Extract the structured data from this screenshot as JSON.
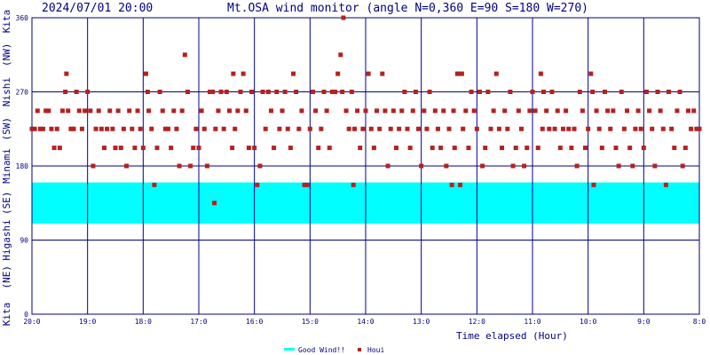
{
  "header": {
    "timestamp": "2024/07/01 20:00",
    "title": "Mt.OSA wind monitor (angle N=0,360 E=90 S=180 W=270)"
  },
  "colors": {
    "axis": "#000080",
    "grid": "#00008b",
    "band": "#00ffff",
    "points": "#b22222"
  },
  "chart_data": {
    "type": "scatter",
    "title": "Mt.OSA wind monitor (angle N=0,360 E=90 S=180 W=270)",
    "xlabel": "Time elapsed (Hour)",
    "ylabel": "",
    "x_direction": "reversed (20:0 at left, 8:0 at right)",
    "xlim": [
      20,
      8
    ],
    "ylim": [
      0,
      360
    ],
    "x_ticks": [
      "20:0",
      "19:0",
      "18:0",
      "17:0",
      "16:0",
      "15:0",
      "14:0",
      "13:0",
      "12:0",
      "11:0",
      "10:0",
      "9:0",
      "8:0"
    ],
    "y_ticks": [
      "0",
      "90",
      "180",
      "270",
      "360"
    ],
    "y_direction_labels": [
      {
        "text": "Kita",
        "angle": 0
      },
      {
        "text": "(NE)",
        "angle": 45
      },
      {
        "text": "Higashi",
        "angle": 90
      },
      {
        "text": "(SE)",
        "angle": 135
      },
      {
        "text": "Minami",
        "angle": 180
      },
      {
        "text": "(SW)",
        "angle": 225
      },
      {
        "text": "Nishi",
        "angle": 270
      },
      {
        "text": "(NW)",
        "angle": 315
      },
      {
        "text": "Kita",
        "angle": 360
      }
    ],
    "good_wind_band": {
      "from": 110,
      "to": 160
    },
    "legend": [
      {
        "label": "Good Wind!!",
        "symbol": "band"
      },
      {
        "label": "Houi",
        "symbol": "point"
      }
    ],
    "legend_position": "bottom",
    "grid": true,
    "series": [
      {
        "name": "Houi",
        "points": [
          [
            20.0,
            225
          ],
          [
            19.95,
            225
          ],
          [
            19.9,
            247
          ],
          [
            19.85,
            225
          ],
          [
            19.8,
            225
          ],
          [
            19.75,
            247
          ],
          [
            19.7,
            247
          ],
          [
            19.65,
            225
          ],
          [
            19.6,
            202
          ],
          [
            19.55,
            225
          ],
          [
            19.5,
            202
          ],
          [
            19.45,
            247
          ],
          [
            19.4,
            270
          ],
          [
            19.38,
            292
          ],
          [
            19.35,
            247
          ],
          [
            19.3,
            225
          ],
          [
            19.25,
            225
          ],
          [
            19.2,
            270
          ],
          [
            19.15,
            247
          ],
          [
            19.1,
            225
          ],
          [
            19.05,
            247
          ],
          [
            19.0,
            270
          ],
          [
            18.95,
            247
          ],
          [
            18.9,
            180
          ],
          [
            18.85,
            225
          ],
          [
            18.8,
            247
          ],
          [
            18.75,
            225
          ],
          [
            18.7,
            202
          ],
          [
            18.65,
            225
          ],
          [
            18.6,
            247
          ],
          [
            18.55,
            225
          ],
          [
            18.5,
            202
          ],
          [
            18.45,
            247
          ],
          [
            18.4,
            202
          ],
          [
            18.35,
            225
          ],
          [
            18.3,
            180
          ],
          [
            18.25,
            247
          ],
          [
            18.2,
            225
          ],
          [
            18.15,
            202
          ],
          [
            18.1,
            247
          ],
          [
            18.05,
            225
          ],
          [
            18.0,
            202
          ],
          [
            17.95,
            292
          ],
          [
            17.92,
            270
          ],
          [
            17.9,
            247
          ],
          [
            17.85,
            225
          ],
          [
            17.8,
            157
          ],
          [
            17.75,
            202
          ],
          [
            17.7,
            270
          ],
          [
            17.65,
            247
          ],
          [
            17.6,
            225
          ],
          [
            17.55,
            225
          ],
          [
            17.5,
            202
          ],
          [
            17.45,
            247
          ],
          [
            17.4,
            225
          ],
          [
            17.35,
            180
          ],
          [
            17.3,
            247
          ],
          [
            17.25,
            315
          ],
          [
            17.2,
            270
          ],
          [
            17.15,
            180
          ],
          [
            17.1,
            202
          ],
          [
            17.05,
            225
          ],
          [
            17.0,
            202
          ],
          [
            16.95,
            247
          ],
          [
            16.9,
            225
          ],
          [
            16.85,
            180
          ],
          [
            16.8,
            270
          ],
          [
            16.75,
            270
          ],
          [
            16.72,
            135
          ],
          [
            16.7,
            225
          ],
          [
            16.65,
            247
          ],
          [
            16.6,
            270
          ],
          [
            16.55,
            225
          ],
          [
            16.5,
            270
          ],
          [
            16.45,
            247
          ],
          [
            16.4,
            202
          ],
          [
            16.38,
            292
          ],
          [
            16.35,
            225
          ],
          [
            16.3,
            247
          ],
          [
            16.25,
            270
          ],
          [
            16.2,
            292
          ],
          [
            16.15,
            247
          ],
          [
            16.1,
            202
          ],
          [
            16.05,
            270
          ],
          [
            16.0,
            202
          ],
          [
            15.95,
            157
          ],
          [
            15.9,
            180
          ],
          [
            15.85,
            270
          ],
          [
            15.8,
            225
          ],
          [
            15.75,
            270
          ],
          [
            15.7,
            247
          ],
          [
            15.65,
            202
          ],
          [
            15.6,
            270
          ],
          [
            15.55,
            225
          ],
          [
            15.5,
            247
          ],
          [
            15.45,
            270
          ],
          [
            15.4,
            225
          ],
          [
            15.35,
            202
          ],
          [
            15.3,
            292
          ],
          [
            15.25,
            270
          ],
          [
            15.2,
            225
          ],
          [
            15.15,
            247
          ],
          [
            15.1,
            157
          ],
          [
            15.05,
            157
          ],
          [
            15.0,
            225
          ],
          [
            14.95,
            270
          ],
          [
            14.9,
            247
          ],
          [
            14.85,
            202
          ],
          [
            14.8,
            225
          ],
          [
            14.75,
            270
          ],
          [
            14.7,
            247
          ],
          [
            14.65,
            202
          ],
          [
            14.6,
            270
          ],
          [
            14.55,
            270
          ],
          [
            14.5,
            292
          ],
          [
            14.45,
            315
          ],
          [
            14.42,
            270
          ],
          [
            14.4,
            360
          ],
          [
            14.35,
            247
          ],
          [
            14.3,
            225
          ],
          [
            14.25,
            270
          ],
          [
            14.22,
            157
          ],
          [
            14.2,
            225
          ],
          [
            14.15,
            247
          ],
          [
            14.1,
            202
          ],
          [
            14.05,
            225
          ],
          [
            14.0,
            247
          ],
          [
            13.95,
            292
          ],
          [
            13.9,
            225
          ],
          [
            13.85,
            202
          ],
          [
            13.8,
            247
          ],
          [
            13.75,
            225
          ],
          [
            13.7,
            292
          ],
          [
            13.65,
            247
          ],
          [
            13.6,
            180
          ],
          [
            13.55,
            225
          ],
          [
            13.5,
            247
          ],
          [
            13.45,
            202
          ],
          [
            13.4,
            225
          ],
          [
            13.35,
            247
          ],
          [
            13.3,
            270
          ],
          [
            13.25,
            225
          ],
          [
            13.2,
            202
          ],
          [
            13.15,
            247
          ],
          [
            13.1,
            270
          ],
          [
            13.05,
            225
          ],
          [
            13.0,
            180
          ],
          [
            12.95,
            247
          ],
          [
            12.9,
            225
          ],
          [
            12.85,
            270
          ],
          [
            12.8,
            202
          ],
          [
            12.75,
            247
          ],
          [
            12.7,
            225
          ],
          [
            12.65,
            202
          ],
          [
            12.6,
            247
          ],
          [
            12.55,
            180
          ],
          [
            12.5,
            225
          ],
          [
            12.45,
            157
          ],
          [
            12.42,
            247
          ],
          [
            12.4,
            202
          ],
          [
            12.35,
            292
          ],
          [
            12.32,
            292
          ],
          [
            12.3,
            157
          ],
          [
            12.27,
            292
          ],
          [
            12.25,
            225
          ],
          [
            12.2,
            247
          ],
          [
            12.15,
            202
          ],
          [
            12.1,
            270
          ],
          [
            12.05,
            247
          ],
          [
            12.0,
            225
          ],
          [
            11.95,
            270
          ],
          [
            11.9,
            180
          ],
          [
            11.85,
            202
          ],
          [
            11.8,
            270
          ],
          [
            11.75,
            225
          ],
          [
            11.7,
            247
          ],
          [
            11.65,
            292
          ],
          [
            11.6,
            225
          ],
          [
            11.55,
            202
          ],
          [
            11.5,
            247
          ],
          [
            11.45,
            225
          ],
          [
            11.4,
            270
          ],
          [
            11.35,
            180
          ],
          [
            11.3,
            202
          ],
          [
            11.25,
            247
          ],
          [
            11.2,
            225
          ],
          [
            11.15,
            180
          ],
          [
            11.1,
            202
          ],
          [
            11.05,
            247
          ],
          [
            11.0,
            270
          ],
          [
            10.95,
            247
          ],
          [
            10.9,
            202
          ],
          [
            10.85,
            292
          ],
          [
            10.82,
            225
          ],
          [
            10.8,
            270
          ],
          [
            10.75,
            247
          ],
          [
            10.7,
            225
          ],
          [
            10.65,
            270
          ],
          [
            10.6,
            225
          ],
          [
            10.55,
            247
          ],
          [
            10.5,
            202
          ],
          [
            10.45,
            225
          ],
          [
            10.4,
            247
          ],
          [
            10.35,
            225
          ],
          [
            10.3,
            202
          ],
          [
            10.25,
            225
          ],
          [
            10.2,
            180
          ],
          [
            10.15,
            270
          ],
          [
            10.1,
            247
          ],
          [
            10.05,
            202
          ],
          [
            10.0,
            225
          ],
          [
            9.95,
            292
          ],
          [
            9.92,
            270
          ],
          [
            9.9,
            157
          ],
          [
            9.85,
            247
          ],
          [
            9.8,
            225
          ],
          [
            9.75,
            202
          ],
          [
            9.7,
            270
          ],
          [
            9.65,
            247
          ],
          [
            9.6,
            225
          ],
          [
            9.55,
            247
          ],
          [
            9.5,
            202
          ],
          [
            9.45,
            180
          ],
          [
            9.4,
            270
          ],
          [
            9.35,
            225
          ],
          [
            9.3,
            247
          ],
          [
            9.25,
            202
          ],
          [
            9.2,
            180
          ],
          [
            9.15,
            225
          ],
          [
            9.1,
            247
          ],
          [
            9.05,
            225
          ],
          [
            9.0,
            202
          ],
          [
            8.95,
            270
          ],
          [
            8.9,
            247
          ],
          [
            8.85,
            225
          ],
          [
            8.8,
            180
          ],
          [
            8.75,
            270
          ],
          [
            8.7,
            247
          ],
          [
            8.65,
            225
          ],
          [
            8.6,
            157
          ],
          [
            8.55,
            270
          ],
          [
            8.5,
            225
          ],
          [
            8.45,
            202
          ],
          [
            8.4,
            247
          ],
          [
            8.35,
            270
          ],
          [
            8.3,
            180
          ],
          [
            8.25,
            202
          ],
          [
            8.2,
            247
          ],
          [
            8.15,
            225
          ],
          [
            8.1,
            247
          ],
          [
            8.05,
            225
          ],
          [
            8.0,
            225
          ]
        ]
      }
    ]
  }
}
